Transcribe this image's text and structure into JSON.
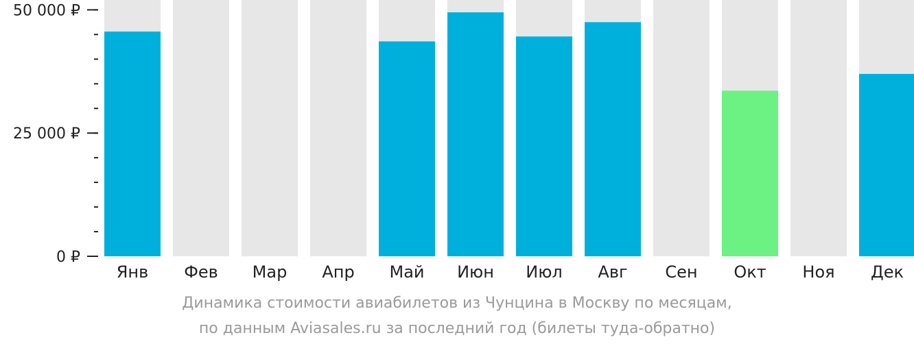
{
  "chart_data": {
    "type": "bar",
    "categories": [
      "Янв",
      "Фев",
      "Мар",
      "Апр",
      "Май",
      "Июн",
      "Июл",
      "Авг",
      "Сен",
      "Окт",
      "Ноя",
      "Дек"
    ],
    "values": [
      45600,
      null,
      null,
      null,
      43600,
      49500,
      44600,
      47500,
      null,
      33600,
      null,
      37000
    ],
    "highlight_index": 9,
    "ylim": [
      0,
      52000
    ],
    "yticks": [
      {
        "value": 0,
        "label": "0 ₽"
      },
      {
        "value": 25000,
        "label": "25 000 ₽"
      },
      {
        "value": 50000,
        "label": "50 000 ₽"
      }
    ],
    "minor_tick_step": 5000,
    "grid": false,
    "colors": {
      "bar": "#00b0dc",
      "highlight": "#6cf283",
      "background_bar": "#e7e7e7",
      "axis": "#222222"
    }
  },
  "caption": {
    "line1": "Динамика стоимости авиабилетов из Чунцина в Москву по месяцам,",
    "line2": "по данным Aviasales.ru за последний год (билеты туда-обратно)"
  }
}
